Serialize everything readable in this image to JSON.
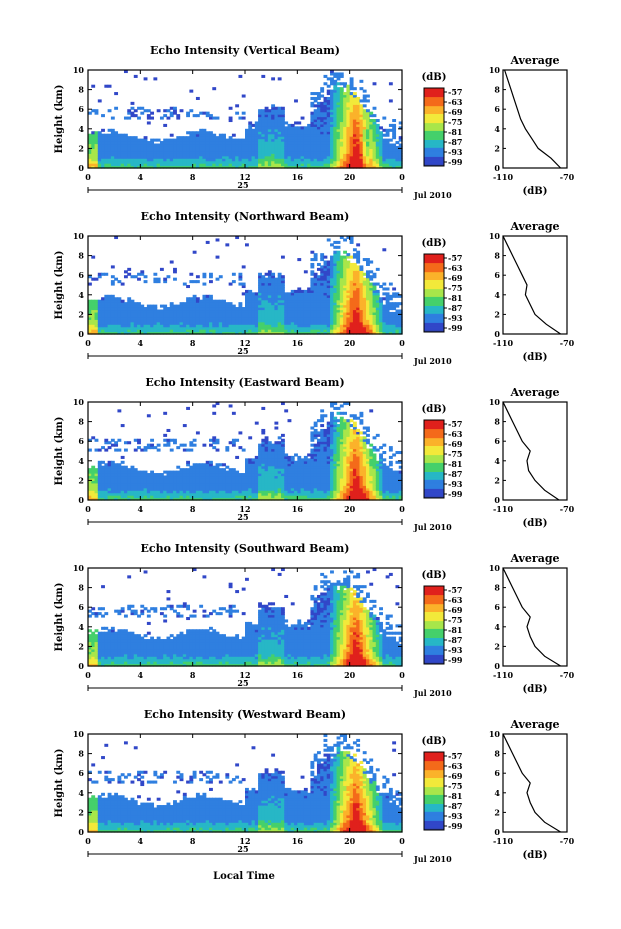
{
  "figure": {
    "xlabel": "Local Time",
    "date_label": "Jul 2010",
    "day_label": "25",
    "colorbar_unit": "(dB)",
    "colorbar_ticks": [
      "-57",
      "-63",
      "-69",
      "-75",
      "-81",
      "-87",
      "-93",
      "-99"
    ],
    "colorbar_colors": [
      "#e0201c",
      "#f46a1a",
      "#fbb22a",
      "#f2e93a",
      "#a8e64a",
      "#45d06b",
      "#27b7c6",
      "#2f7fe0",
      "#3147c8",
      "#2e3a8c"
    ],
    "avg_title": "Average",
    "avg_xlabel": "(dB)",
    "avg_xticks": [
      "-110",
      "-70"
    ],
    "ylabel": "Height (km)",
    "yticks": [
      "0",
      "2",
      "4",
      "6",
      "8",
      "10"
    ],
    "xticks": [
      "0",
      "4",
      "8",
      "12",
      "16",
      "20",
      "0"
    ]
  },
  "chart_data": [
    {
      "type": "heatmap",
      "title": "Echo Intensity (Vertical Beam)",
      "x_range_hours": [
        0,
        24
      ],
      "ylim_km": [
        0,
        10
      ],
      "color_range_db": [
        -99,
        -57
      ],
      "average_profile": {
        "xlim_db": [
          -110,
          -70
        ],
        "height_km": [
          0,
          1,
          2,
          3,
          4,
          5,
          6,
          7,
          8,
          9,
          10
        ],
        "db": [
          -74,
          -80,
          -88,
          -92,
          -96,
          -99,
          -101,
          -103,
          -105,
          -107,
          -109
        ]
      }
    },
    {
      "type": "heatmap",
      "title": "Echo Intensity (Northward Beam)",
      "x_range_hours": [
        0,
        24
      ],
      "ylim_km": [
        0,
        10
      ],
      "color_range_db": [
        -99,
        -57
      ],
      "average_profile": {
        "xlim_db": [
          -110,
          -70
        ],
        "height_km": [
          0,
          1,
          2,
          3,
          4,
          5,
          6,
          7,
          8,
          9,
          10
        ],
        "db": [
          -74,
          -83,
          -90,
          -93,
          -96,
          -95,
          -98,
          -101,
          -104,
          -107,
          -110
        ]
      }
    },
    {
      "type": "heatmap",
      "title": "Echo Intensity (Eastward Beam)",
      "x_range_hours": [
        0,
        24
      ],
      "ylim_km": [
        0,
        10
      ],
      "color_range_db": [
        -99,
        -57
      ],
      "average_profile": {
        "xlim_db": [
          -110,
          -70
        ],
        "height_km": [
          0,
          1,
          2,
          3,
          4,
          5,
          6,
          7,
          8,
          9,
          10
        ],
        "db": [
          -75,
          -84,
          -90,
          -94,
          -95,
          -93,
          -98,
          -101,
          -104,
          -107,
          -110
        ]
      }
    },
    {
      "type": "heatmap",
      "title": "Echo Intensity (Southward Beam)",
      "x_range_hours": [
        0,
        24
      ],
      "ylim_km": [
        0,
        10
      ],
      "color_range_db": [
        -99,
        -57
      ],
      "average_profile": {
        "xlim_db": [
          -110,
          -70
        ],
        "height_km": [
          0,
          1,
          2,
          3,
          4,
          5,
          6,
          7,
          8,
          9,
          10
        ],
        "db": [
          -74,
          -84,
          -90,
          -93,
          -95,
          -93,
          -98,
          -101,
          -104,
          -107,
          -110
        ]
      }
    },
    {
      "type": "heatmap",
      "title": "Echo Intensity (Westward Beam)",
      "x_range_hours": [
        0,
        24
      ],
      "ylim_km": [
        0,
        10
      ],
      "color_range_db": [
        -99,
        -57
      ],
      "average_profile": {
        "xlim_db": [
          -110,
          -70
        ],
        "height_km": [
          0,
          1,
          2,
          3,
          4,
          5,
          6,
          7,
          8,
          9,
          10
        ],
        "db": [
          -74,
          -84,
          -90,
          -93,
          -95,
          -93,
          -98,
          -101,
          -104,
          -107,
          -110
        ]
      }
    }
  ]
}
